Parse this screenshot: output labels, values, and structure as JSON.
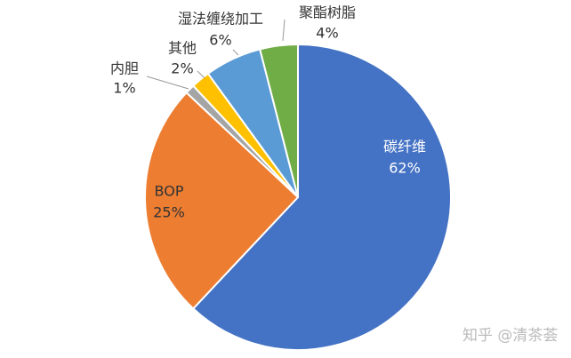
{
  "chart_data": {
    "type": "pie",
    "categories": [
      "碳纤维",
      "BOP",
      "内胆",
      "其他",
      "湿法缠绕加工",
      "聚酯树脂"
    ],
    "values": [
      62,
      25,
      1,
      2,
      6,
      4
    ],
    "value_labels": [
      "62%",
      "25%",
      "1%",
      "2%",
      "6%",
      "4%"
    ],
    "colors": [
      "#4472c4",
      "#ed7d31",
      "#a5a5a5",
      "#ffc000",
      "#5b9bd5",
      "#70ad47"
    ]
  },
  "watermark": "知乎 @清茶荟"
}
